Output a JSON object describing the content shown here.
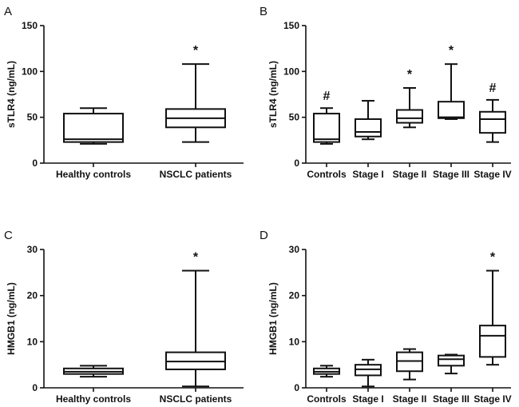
{
  "chart_data": [
    {
      "panel": "A",
      "type": "box",
      "ylabel": "sTLR4 (ng/mL)",
      "ylim": [
        0,
        150
      ],
      "yticks": [
        0,
        50,
        100,
        150
      ],
      "categories": [
        "Healthy controls",
        "NSCLC patients"
      ],
      "boxes": [
        {
          "min": 21,
          "q1": 23,
          "median": 26,
          "q3": 54,
          "max": 60,
          "mark": ""
        },
        {
          "min": 23,
          "q1": 39,
          "median": 49,
          "q3": 59,
          "max": 108,
          "mark": "*"
        }
      ]
    },
    {
      "panel": "B",
      "type": "box",
      "ylabel": "sTLR4 (ng/mL)",
      "ylim": [
        0,
        150
      ],
      "yticks": [
        0,
        50,
        100,
        150
      ],
      "categories": [
        "Controls",
        "Stage I",
        "Stage II",
        "Stage III",
        "Stage IV"
      ],
      "boxes": [
        {
          "min": 21,
          "q1": 23,
          "median": 26,
          "q3": 54,
          "max": 60,
          "mark": "#"
        },
        {
          "min": 26,
          "q1": 29,
          "median": 34,
          "q3": 48,
          "max": 68,
          "mark": ""
        },
        {
          "min": 39,
          "q1": 44,
          "median": 49,
          "q3": 58,
          "max": 82,
          "mark": "*"
        },
        {
          "min": 48,
          "q1": 49,
          "median": 50,
          "q3": 67,
          "max": 108,
          "mark": "*"
        },
        {
          "min": 23,
          "q1": 33,
          "median": 48,
          "q3": 56,
          "max": 69,
          "mark": "#"
        }
      ]
    },
    {
      "panel": "C",
      "type": "box",
      "ylabel": "HMGB1 (ng/mL)",
      "ylim": [
        0,
        30
      ],
      "yticks": [
        0,
        10,
        20,
        30
      ],
      "categories": [
        "Healthy controls",
        "NSCLC patients"
      ],
      "boxes": [
        {
          "min": 2.4,
          "q1": 3.0,
          "median": 3.5,
          "q3": 4.2,
          "max": 4.8,
          "mark": ""
        },
        {
          "min": 0.3,
          "q1": 4.0,
          "median": 5.7,
          "q3": 7.7,
          "max": 25.4,
          "mark": "*"
        }
      ]
    },
    {
      "panel": "D",
      "type": "box",
      "ylabel": "HMGB1 (ng/mL)",
      "ylim": [
        0,
        30
      ],
      "yticks": [
        0,
        10,
        20,
        30
      ],
      "categories": [
        "Controls",
        "Stage I",
        "Stage II",
        "Stage III",
        "Stage IV"
      ],
      "boxes": [
        {
          "min": 2.4,
          "q1": 3.0,
          "median": 3.5,
          "q3": 4.2,
          "max": 4.8,
          "mark": ""
        },
        {
          "min": 0.3,
          "q1": 2.7,
          "median": 4.0,
          "q3": 5.0,
          "max": 6.1,
          "mark": ""
        },
        {
          "min": 1.8,
          "q1": 3.6,
          "median": 5.8,
          "q3": 7.7,
          "max": 8.4,
          "mark": ""
        },
        {
          "min": 3.1,
          "q1": 4.8,
          "median": 6.2,
          "q3": 7.0,
          "max": 7.2,
          "mark": ""
        },
        {
          "min": 5.0,
          "q1": 6.7,
          "median": 11.3,
          "q3": 13.5,
          "max": 25.4,
          "mark": "*"
        }
      ]
    }
  ]
}
